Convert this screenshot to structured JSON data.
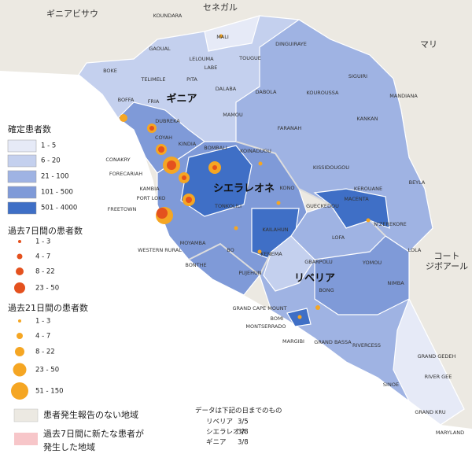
{
  "countries": [
    "ギニアビサウ",
    "セネガル",
    "マリ",
    "ギニア",
    "シエラレオネ",
    "リベリア",
    "コート",
    "ジボアール"
  ],
  "regions": [
    "KOUNDARA",
    "MALI",
    "GAOUAL",
    "LELOUMA",
    "LABE",
    "TOUGUE",
    "DINGUIRAYE",
    "BOKE",
    "TELIMELE",
    "PITA",
    "DALABA",
    "SIGUIRI",
    "MANDIANA",
    "BOFFA",
    "FRIA",
    "MAMOU",
    "DABOLA",
    "KOUROUSSA",
    "KANKAN",
    "DUBREKA",
    "KINDIA",
    "FARANAH",
    "COYAH",
    "CONAKRY",
    "FORECARIAH",
    "KISSIDOUGOU",
    "KEROUANE",
    "BEYLA",
    "MACENTA",
    "GUECKEDOU",
    "N'ZEREKORE",
    "LOLA",
    "YOMOU",
    "LOFA",
    "KAMBIA",
    "PORT LOKO",
    "BOMBALI",
    "KOINADUGU",
    "TONKOLILI",
    "KONO",
    "KAILAHUN",
    "KENEMA",
    "BO",
    "MOYAMBA",
    "BONTHE",
    "PUJEHUN",
    "WESTERN RURAL",
    "FREETOWN",
    "GBARPOLU",
    "BONG",
    "NIMBA",
    "GRAND CAPE MOUNT",
    "BOMI",
    "MONTSERRADO",
    "MARGIBI",
    "GRAND BASSA",
    "RIVERCESS",
    "GRAND GEDEH",
    "SINOE",
    "RIVER GEE",
    "GRAND KRU",
    "MARYLAND"
  ],
  "legend": {
    "confirmed": {
      "title": "確定患者数",
      "items": [
        "1 - 5",
        "6 - 20",
        "21 - 100",
        "101 - 500",
        "501 - 4000"
      ]
    },
    "past7": {
      "title": "過去7日間の患者数",
      "items": [
        "1 - 3",
        "4 - 7",
        "8 - 22",
        "23 - 50"
      ]
    },
    "past21": {
      "title": "過去21日間の患者数",
      "items": [
        "1 - 3",
        "4 - 7",
        "8 - 22",
        "23 - 50",
        "51 - 150"
      ]
    },
    "no_report": "患者発生報告のない地域",
    "new_cases": [
      "過去7日間に新たな患者が",
      "発生した地域"
    ]
  },
  "note": {
    "title": "データは下記の日までのもの",
    "rows": [
      {
        "country": "リベリア",
        "date": "3/5"
      },
      {
        "country": "シエラレオネ",
        "date": "3/8"
      },
      {
        "country": "ギニア",
        "date": "3/8"
      }
    ]
  }
}
